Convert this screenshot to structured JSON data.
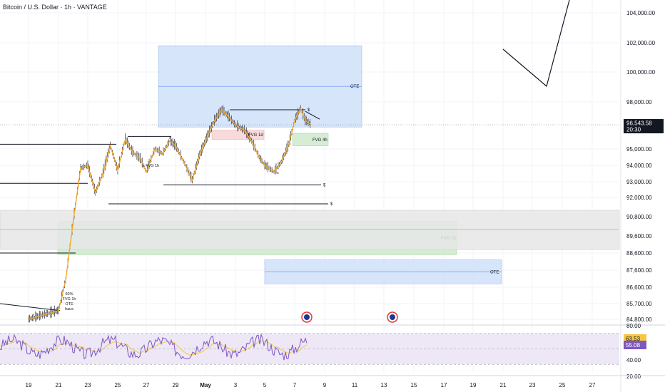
{
  "header": {
    "title": "Bitcoin / U.S. Dollar · 1h · VANTAGE"
  },
  "colors": {
    "price_line": "#f5a623",
    "candle_dark": "#2a2e39",
    "blue_zone": "#cfe0f8",
    "green_zone": "#cfeacc",
    "red_zone": "#f8d3d3",
    "gray_zone": "#e6e6e6",
    "rsi_line": "#7e57c2",
    "rsi_ma": "#f5c842",
    "rsi_band": "#ede7f6",
    "last_price_badge": "#131722"
  },
  "chart_data": {
    "type": "line",
    "symbol": "Bitcoin / U.S. Dollar",
    "interval": "1h",
    "exchange": "VANTAGE",
    "y_axis_ticks": [
      "104,000.00",
      "102,000.00",
      "100,000.00",
      "98,000.00",
      "95,000.00",
      "94,000.00",
      "93,000.00",
      "92,000.00",
      "90,800.00",
      "89,600.00",
      "88,600.00",
      "87,600.00",
      "86,600.00",
      "85,700.00",
      "84,800.00"
    ],
    "x_axis_ticks": [
      "19",
      "21",
      "23",
      "25",
      "27",
      "29",
      "May",
      "3",
      "5",
      "7",
      "9",
      "11",
      "13",
      "15",
      "17",
      "19",
      "21",
      "23",
      "25",
      "27"
    ],
    "last_price": {
      "value": "96,543.58",
      "countdown": "20:30"
    },
    "price_path": [
      {
        "x": "19",
        "y": 84800
      },
      {
        "x": "21",
        "y": 85300
      },
      {
        "x": "21.5",
        "y": 87000
      },
      {
        "x": "22",
        "y": 90500
      },
      {
        "x": "22.5",
        "y": 93800
      },
      {
        "x": "23",
        "y": 94000
      },
      {
        "x": "23.5",
        "y": 92300
      },
      {
        "x": "24",
        "y": 93500
      },
      {
        "x": "24.5",
        "y": 95200
      },
      {
        "x": "25",
        "y": 93700
      },
      {
        "x": "25.5",
        "y": 95600
      },
      {
        "x": "26",
        "y": 94800
      },
      {
        "x": "26.5",
        "y": 94400
      },
      {
        "x": "27",
        "y": 93600
      },
      {
        "x": "27.5",
        "y": 95000
      },
      {
        "x": "28",
        "y": 94700
      },
      {
        "x": "28.5",
        "y": 95500
      },
      {
        "x": "29",
        "y": 95200
      },
      {
        "x": "29.5",
        "y": 94100
      },
      {
        "x": "30",
        "y": 93100
      },
      {
        "x": "30.5",
        "y": 94600
      },
      {
        "x": "May 1",
        "y": 95500
      },
      {
        "x": "1.5",
        "y": 96800
      },
      {
        "x": "2",
        "y": 97500
      },
      {
        "x": "2.5",
        "y": 97000
      },
      {
        "x": "3",
        "y": 96500
      },
      {
        "x": "3.5",
        "y": 96200
      },
      {
        "x": "4",
        "y": 95500
      },
      {
        "x": "4.5",
        "y": 94500
      },
      {
        "x": "5",
        "y": 94000
      },
      {
        "x": "5.5",
        "y": 93600
      },
      {
        "x": "6",
        "y": 94200
      },
      {
        "x": "6.5",
        "y": 95300
      },
      {
        "x": "7",
        "y": 96800
      },
      {
        "x": "7.3",
        "y": 97600
      },
      {
        "x": "7.6",
        "y": 96800
      },
      {
        "x": "8",
        "y": 96543.58
      }
    ],
    "zones": [
      {
        "kind": "OTE",
        "color": "blue",
        "label": "OTE",
        "top": 101800,
        "bottom": 96400
      },
      {
        "kind": "OTE",
        "color": "blue",
        "label": "OTE",
        "top": 88200,
        "bottom": 86800
      },
      {
        "kind": "FVG",
        "color": "green",
        "label": "FVG 1d",
        "top": 90500,
        "bottom": 88500
      },
      {
        "kind": "FVG",
        "color": "red",
        "label": "FVG 1d",
        "top": 96200,
        "bottom": 95600
      },
      {
        "kind": "FVG",
        "color": "green",
        "label": "FVG 4h",
        "top": 96000,
        "bottom": 95200
      },
      {
        "kind": "range",
        "color": "gray",
        "label": "",
        "top": 91200,
        "bottom": 88800
      }
    ],
    "level_lines": [
      {
        "label": "$",
        "price": 97500
      },
      {
        "label": "$",
        "price": 92800
      },
      {
        "label": "$",
        "price": 91600
      }
    ],
    "annotations": [
      {
        "text": "x",
        "near": "95,800"
      },
      {
        "text": "x FVG 1h",
        "near": "93,900"
      },
      {
        "text": "x",
        "near": "93,600"
      },
      {
        "text": "50%",
        "near": "21"
      },
      {
        "text": "FVG 1h",
        "near": "21"
      },
      {
        "text": "OTE",
        "near": "21"
      },
      {
        "text": "haus",
        "near": "21"
      }
    ],
    "rsi": {
      "y_axis_ticks": [
        "80.00",
        "40.00",
        "20.00"
      ],
      "rsi_value": "55.08",
      "ma_value": "63.53",
      "band": [
        30,
        70
      ]
    },
    "grid": true
  }
}
